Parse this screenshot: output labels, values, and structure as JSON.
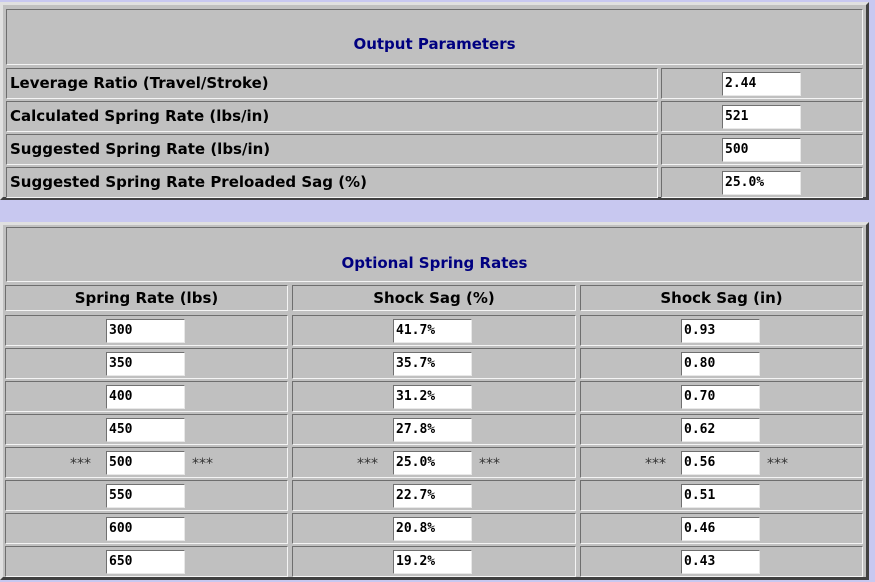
{
  "output": {
    "title": "Output Parameters",
    "rows": [
      {
        "label": "Leverage Ratio (Travel/Stroke)",
        "value": "2.44"
      },
      {
        "label": "Calculated Spring Rate (lbs/in)",
        "value": "521"
      },
      {
        "label": "Suggested Spring Rate (lbs/in)",
        "value": "500"
      },
      {
        "label": "Suggested Spring Rate Preloaded Sag (%)",
        "value": "25.0%"
      }
    ]
  },
  "optional": {
    "title": "Optional Spring Rates",
    "headers": [
      "Spring Rate (lbs)",
      "Shock Sag (%)",
      "Shock Sag (in)"
    ],
    "marker": "***",
    "rows": [
      {
        "rate": "300",
        "sag_pct": "41.7%",
        "sag_in": "0.93",
        "highlight": false
      },
      {
        "rate": "350",
        "sag_pct": "35.7%",
        "sag_in": "0.80",
        "highlight": false
      },
      {
        "rate": "400",
        "sag_pct": "31.2%",
        "sag_in": "0.70",
        "highlight": false
      },
      {
        "rate": "450",
        "sag_pct": "27.8%",
        "sag_in": "0.62",
        "highlight": false
      },
      {
        "rate": "500",
        "sag_pct": "25.0%",
        "sag_in": "0.56",
        "highlight": true
      },
      {
        "rate": "550",
        "sag_pct": "22.7%",
        "sag_in": "0.51",
        "highlight": false
      },
      {
        "rate": "600",
        "sag_pct": "20.8%",
        "sag_in": "0.46",
        "highlight": false
      },
      {
        "rate": "650",
        "sag_pct": "19.2%",
        "sag_in": "0.43",
        "highlight": false
      }
    ]
  }
}
